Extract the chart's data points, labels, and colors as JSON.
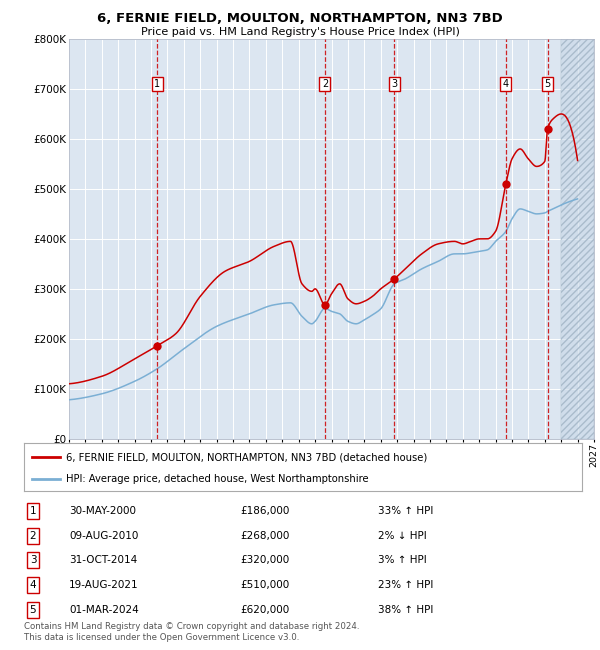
{
  "title1": "6, FERNIE FIELD, MOULTON, NORTHAMPTON, NN3 7BD",
  "title2": "Price paid vs. HM Land Registry's House Price Index (HPI)",
  "bg_color": "#dce6f1",
  "grid_color": "#ffffff",
  "red_line_color": "#cc0000",
  "blue_line_color": "#7bafd4",
  "vline_color": "#cc0000",
  "sale_points": [
    {
      "num": 1,
      "year": 2000.37,
      "price": 186000
    },
    {
      "num": 2,
      "year": 2010.6,
      "price": 268000
    },
    {
      "num": 3,
      "year": 2014.83,
      "price": 320000
    },
    {
      "num": 4,
      "year": 2021.63,
      "price": 510000
    },
    {
      "num": 5,
      "year": 2024.17,
      "price": 620000
    }
  ],
  "yticks": [
    0,
    100000,
    200000,
    300000,
    400000,
    500000,
    600000,
    700000,
    800000
  ],
  "ytick_labels": [
    "£0",
    "£100K",
    "£200K",
    "£300K",
    "£400K",
    "£500K",
    "£600K",
    "£700K",
    "£800K"
  ],
  "legend_label_red": "6, FERNIE FIELD, MOULTON, NORTHAMPTON, NN3 7BD (detached house)",
  "legend_label_blue": "HPI: Average price, detached house, West Northamptonshire",
  "footer": "Contains HM Land Registry data © Crown copyright and database right 2024.\nThis data is licensed under the Open Government Licence v3.0.",
  "table_rows": [
    [
      "1",
      "30-MAY-2000",
      "£186,000",
      "33% ↑ HPI"
    ],
    [
      "2",
      "09-AUG-2010",
      "£268,000",
      "2% ↓ HPI"
    ],
    [
      "3",
      "31-OCT-2014",
      "£320,000",
      "3% ↑ HPI"
    ],
    [
      "4",
      "19-AUG-2021",
      "£510,000",
      "23% ↑ HPI"
    ],
    [
      "5",
      "01-MAR-2024",
      "£620,000",
      "38% ↑ HPI"
    ]
  ]
}
